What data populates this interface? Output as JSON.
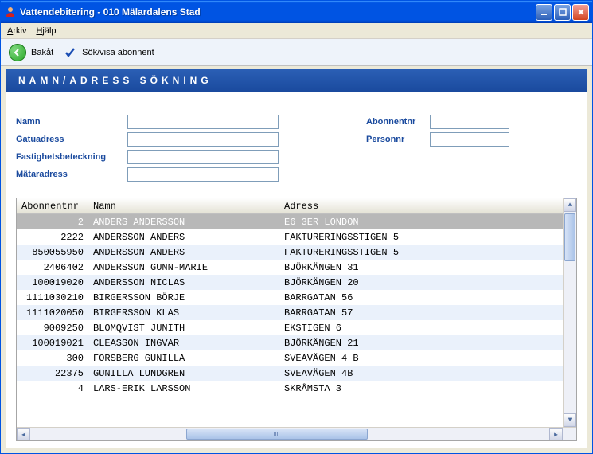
{
  "window": {
    "title": "Vattendebitering  -  010 Mälardalens Stad"
  },
  "menu": {
    "arkiv": "Arkiv",
    "hjalp": "Hjälp"
  },
  "toolbar": {
    "back_label": "Bakåt",
    "search_label": "Sök/visa abonnent"
  },
  "header": {
    "title": "NAMN/ADRESS SÖKNING"
  },
  "form": {
    "namn_label": "Namn",
    "gatu_label": "Gatuadress",
    "fastighet_label": "Fastighetsbeteckning",
    "matar_label": "Mätaradress",
    "abonnent_label": "Abonnentnr",
    "personnr_label": "Personnr",
    "namn_value": "",
    "gatu_value": "",
    "fastighet_value": "",
    "matar_value": "",
    "abonnent_value": "",
    "personnr_value": ""
  },
  "table": {
    "col_abonnent": "Abonnentnr",
    "col_namn": "Namn",
    "col_adress": "Adress",
    "rows": [
      {
        "abo": "2",
        "name": "ANDERS ANDERSSON",
        "addr": "E6 3ER LONDON",
        "selected": true
      },
      {
        "abo": "2222",
        "name": "ANDERSSON ANDERS",
        "addr": "FAKTURERINGSSTIGEN 5"
      },
      {
        "abo": "850055950",
        "name": "ANDERSSON ANDERS",
        "addr": "FAKTURERINGSSTIGEN 5"
      },
      {
        "abo": "2406402",
        "name": "ANDERSSON GUNN-MARIE",
        "addr": "BJÖRKÄNGEN 31"
      },
      {
        "abo": "100019020",
        "name": "ANDERSSON NICLAS",
        "addr": "BJÖRKÄNGEN 20"
      },
      {
        "abo": "1111030210",
        "name": "BIRGERSSON BÖRJE",
        "addr": "BARRGATAN 56"
      },
      {
        "abo": "1111020050",
        "name": "BIRGERSSON KLAS",
        "addr": "BARRGATAN 57"
      },
      {
        "abo": "9009250",
        "name": "BLOMQVIST JUNITH",
        "addr": "EKSTIGEN 6"
      },
      {
        "abo": "100019021",
        "name": "CLEASSON INGVAR",
        "addr": "BJÖRKÄNGEN 21"
      },
      {
        "abo": "300",
        "name": "FORSBERG GUNILLA",
        "addr": "SVEAVÄGEN 4 B"
      },
      {
        "abo": "22375",
        "name": "GUNILLA LUNDGREN",
        "addr": "SVEAVÄGEN 4B"
      },
      {
        "abo": "4",
        "name": "LARS-ERIK LARSSON",
        "addr": "SKRÅMSTA 3"
      }
    ]
  }
}
